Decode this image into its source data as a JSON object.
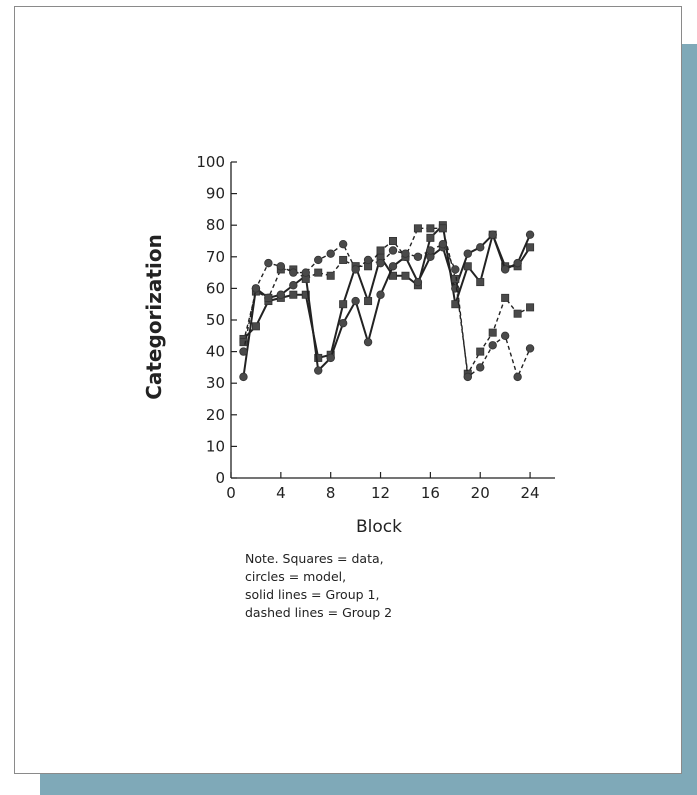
{
  "colors": {
    "shadow": "#7fa9b8",
    "ink": "#222222",
    "marker": "#4a4a4a"
  },
  "chart_data": {
    "type": "line",
    "title": "",
    "xlabel": "Block",
    "ylabel": "Categorization",
    "xlim": [
      0,
      26
    ],
    "ylim": [
      0,
      100
    ],
    "xticks": [
      0,
      4,
      8,
      12,
      16,
      20,
      24
    ],
    "yticks": [
      0,
      10,
      20,
      30,
      40,
      50,
      60,
      70,
      80,
      90,
      100
    ],
    "grid": false,
    "x": [
      1,
      2,
      3,
      4,
      5,
      6,
      7,
      8,
      9,
      10,
      11,
      12,
      13,
      14,
      15,
      16,
      17,
      18,
      19,
      20,
      21,
      22,
      23,
      24
    ],
    "series": [
      {
        "group": "Group 1",
        "kind": "data",
        "marker": "square",
        "line": "solid",
        "values": [
          44,
          48,
          56,
          57,
          58,
          58,
          38,
          39,
          55,
          67,
          56,
          70,
          64,
          64,
          61,
          76,
          80,
          55,
          67,
          62,
          77,
          67,
          67,
          73
        ]
      },
      {
        "group": "Group 1",
        "kind": "model",
        "marker": "circle",
        "line": "solid",
        "values": [
          32,
          60,
          57,
          58,
          61,
          64,
          34,
          38,
          49,
          56,
          43,
          58,
          67,
          70,
          62,
          70,
          73,
          60,
          71,
          73,
          77,
          66,
          68,
          77
        ]
      },
      {
        "group": "Group 2",
        "kind": "data",
        "marker": "square",
        "line": "dashed",
        "values": [
          43,
          59,
          57,
          66,
          66,
          63,
          65,
          64,
          69,
          67,
          67,
          72,
          75,
          70,
          79,
          79,
          79,
          63,
          33,
          40,
          46,
          57,
          52,
          54
        ]
      },
      {
        "group": "Group 2",
        "kind": "model",
        "marker": "circle",
        "line": "dashed",
        "values": [
          40,
          60,
          68,
          67,
          65,
          65,
          69,
          71,
          74,
          66,
          69,
          68,
          72,
          71,
          70,
          72,
          74,
          66,
          32,
          35,
          42,
          45,
          32,
          41
        ]
      }
    ]
  },
  "note": {
    "lines": [
      "Note. Squares = data,",
      "circles = model,",
      "solid lines = Group 1,",
      "dashed lines = Group 2"
    ]
  }
}
